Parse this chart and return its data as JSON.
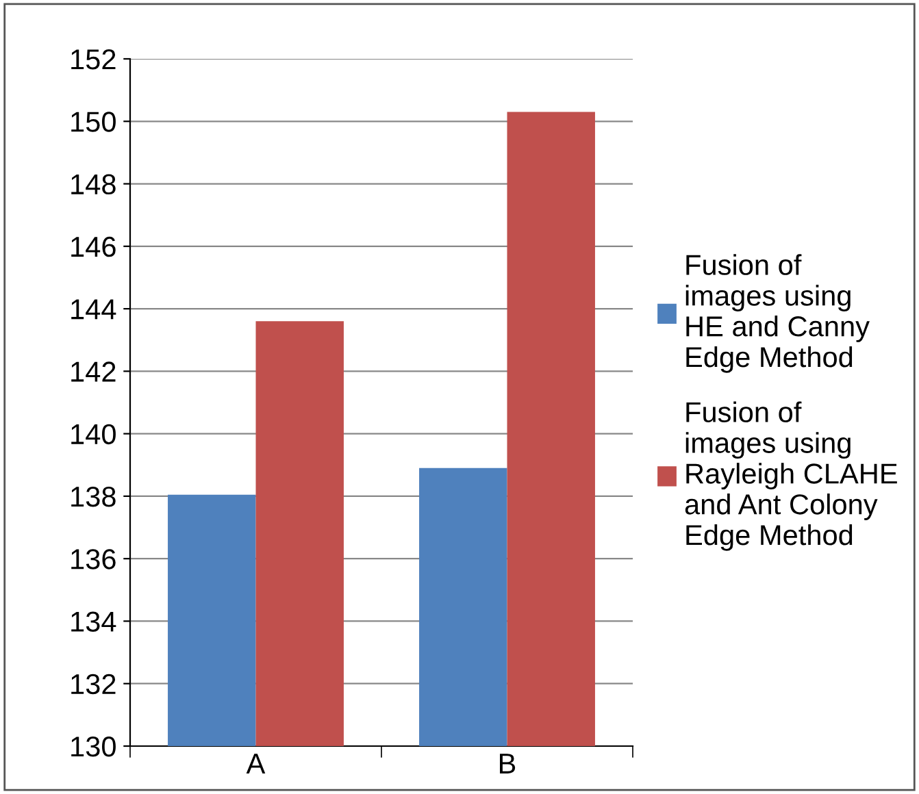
{
  "chart_data": {
    "type": "bar",
    "categories": [
      "A",
      "B"
    ],
    "series": [
      {
        "name": "Fusion of\nimages using\nHE and Canny\nEdge Method",
        "color": "#4f81bd",
        "values": [
          138.05,
          138.9
        ]
      },
      {
        "name": "Fusion of\nimages using\nRayleigh CLAHE\nand Ant Colony\nEdge Method",
        "color": "#c0504d",
        "values": [
          143.6,
          150.3
        ]
      }
    ],
    "ylim": [
      130,
      152
    ],
    "yticks": [
      130,
      132,
      134,
      136,
      138,
      140,
      142,
      144,
      146,
      148,
      150,
      152
    ],
    "grid": "y",
    "legend": "right"
  }
}
